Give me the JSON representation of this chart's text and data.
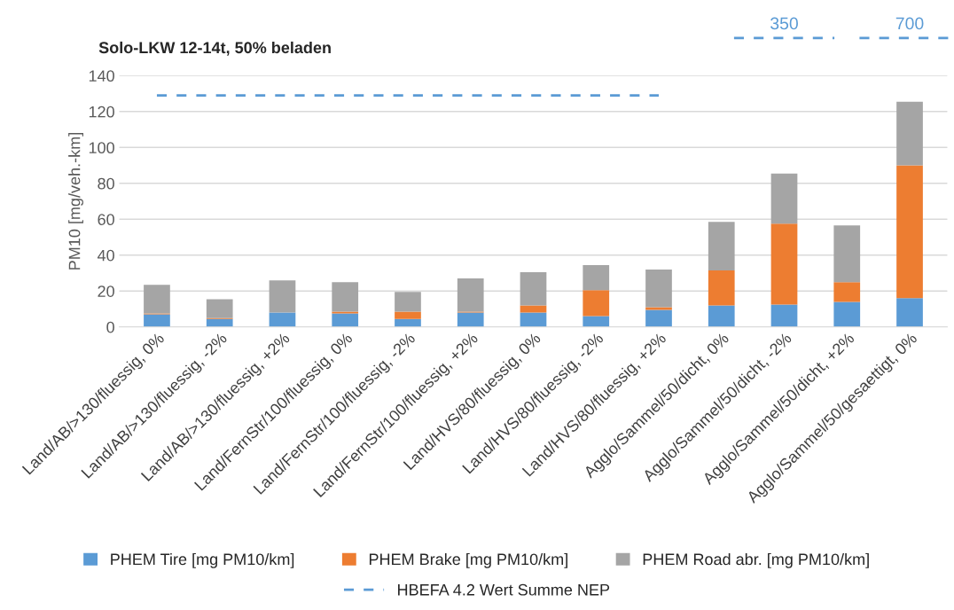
{
  "chart_data": {
    "type": "bar",
    "title": "Solo-LKW 12-14t, 50% beladen",
    "ylabel": "PM10 [mg/veh.-km]",
    "categories": [
      "Land/AB/>130/fluessig, 0%",
      "Land/AB/>130/fluessig, -2%",
      "Land/AB/>130/fluessig, +2%",
      "Land/FernStr/100/fluessig, 0%",
      "Land/FernStr/100/fluessig, -2%",
      "Land/FernStr/100/fluessig, +2%",
      "Land/HVS/80/fluessig, 0%",
      "Land/HVS/80/fluessig, -2%",
      "Land/HVS/80/fluessig, +2%",
      "Agglo/Sammel/50/dicht, 0%",
      "Agglo/Sammel/50/dicht, -2%",
      "Agglo/Sammel/50/dicht, +2%",
      "Agglo/Sammel/50/gesaettigt, 0%"
    ],
    "stacked": true,
    "series": [
      {
        "name": "PHEM Tire [mg PM10/km]",
        "color": "#5b9bd5",
        "values": [
          7,
          4.5,
          8,
          7.5,
          4.5,
          8,
          8,
          6,
          9.5,
          12,
          12.5,
          14,
          16
        ]
      },
      {
        "name": "PHEM Brake [mg PM10/km]",
        "color": "#ed7d31",
        "values": [
          0.5,
          0.5,
          0,
          1,
          4,
          0.5,
          4,
          14.5,
          1.5,
          19.5,
          45,
          11,
          74
        ]
      },
      {
        "name": "PHEM Road abr. [mg PM10/km]",
        "color": "#a5a5a5",
        "values": [
          16,
          10.5,
          18,
          16.5,
          11,
          18.5,
          18.5,
          14,
          21,
          27,
          28,
          31.5,
          35.5
        ]
      },
      {
        "name": "HBEFA 4.2 Wert Summe NEP",
        "type": "line",
        "color": "#5b9bd5",
        "line_style": "dashed",
        "marker": "none",
        "values": [
          129,
          129,
          129,
          129,
          129,
          129,
          129,
          129,
          129,
          null,
          null,
          null,
          null
        ]
      }
    ],
    "annotations": [
      "350",
      "700"
    ],
    "ylim": [
      0,
      140
    ],
    "yticks": [
      0,
      20,
      40,
      60,
      80,
      100,
      120,
      140
    ],
    "grid": "y",
    "legend": "bottom"
  }
}
